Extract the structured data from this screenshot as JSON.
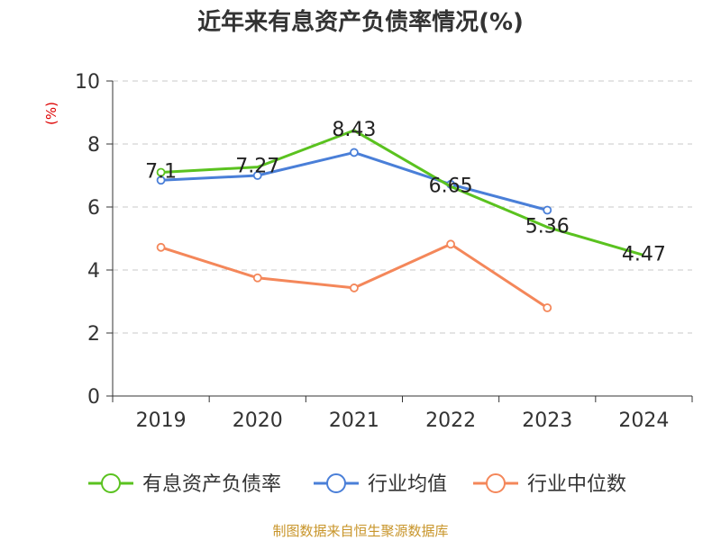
{
  "chart_data": {
    "type": "line",
    "title": "近年来有息资产负债率情况(%)",
    "ylabel": "(%)",
    "categories": [
      "2019",
      "2020",
      "2021",
      "2022",
      "2023",
      "2024"
    ],
    "y_ticks": [
      "0",
      "2",
      "4",
      "6",
      "8",
      "10"
    ],
    "ylim": [
      0,
      10
    ],
    "grid": true,
    "legend_position": "bottom",
    "series": [
      {
        "name": "有息资产负债率",
        "color": "#5ac21f",
        "values": [
          7.1,
          7.27,
          8.43,
          6.65,
          5.36,
          4.47
        ],
        "labels": [
          "7.1",
          "7.27",
          "8.43",
          "6.65",
          "5.36",
          "4.47"
        ]
      },
      {
        "name": "行业均值",
        "color": "#4a7fd8",
        "values": [
          6.85,
          7.0,
          7.73,
          6.72,
          5.9,
          null
        ]
      },
      {
        "name": "行业中位数",
        "color": "#f4875a",
        "values": [
          4.72,
          3.75,
          3.43,
          4.82,
          2.8,
          null
        ]
      }
    ]
  },
  "source": "制图数据来自恒生聚源数据库"
}
